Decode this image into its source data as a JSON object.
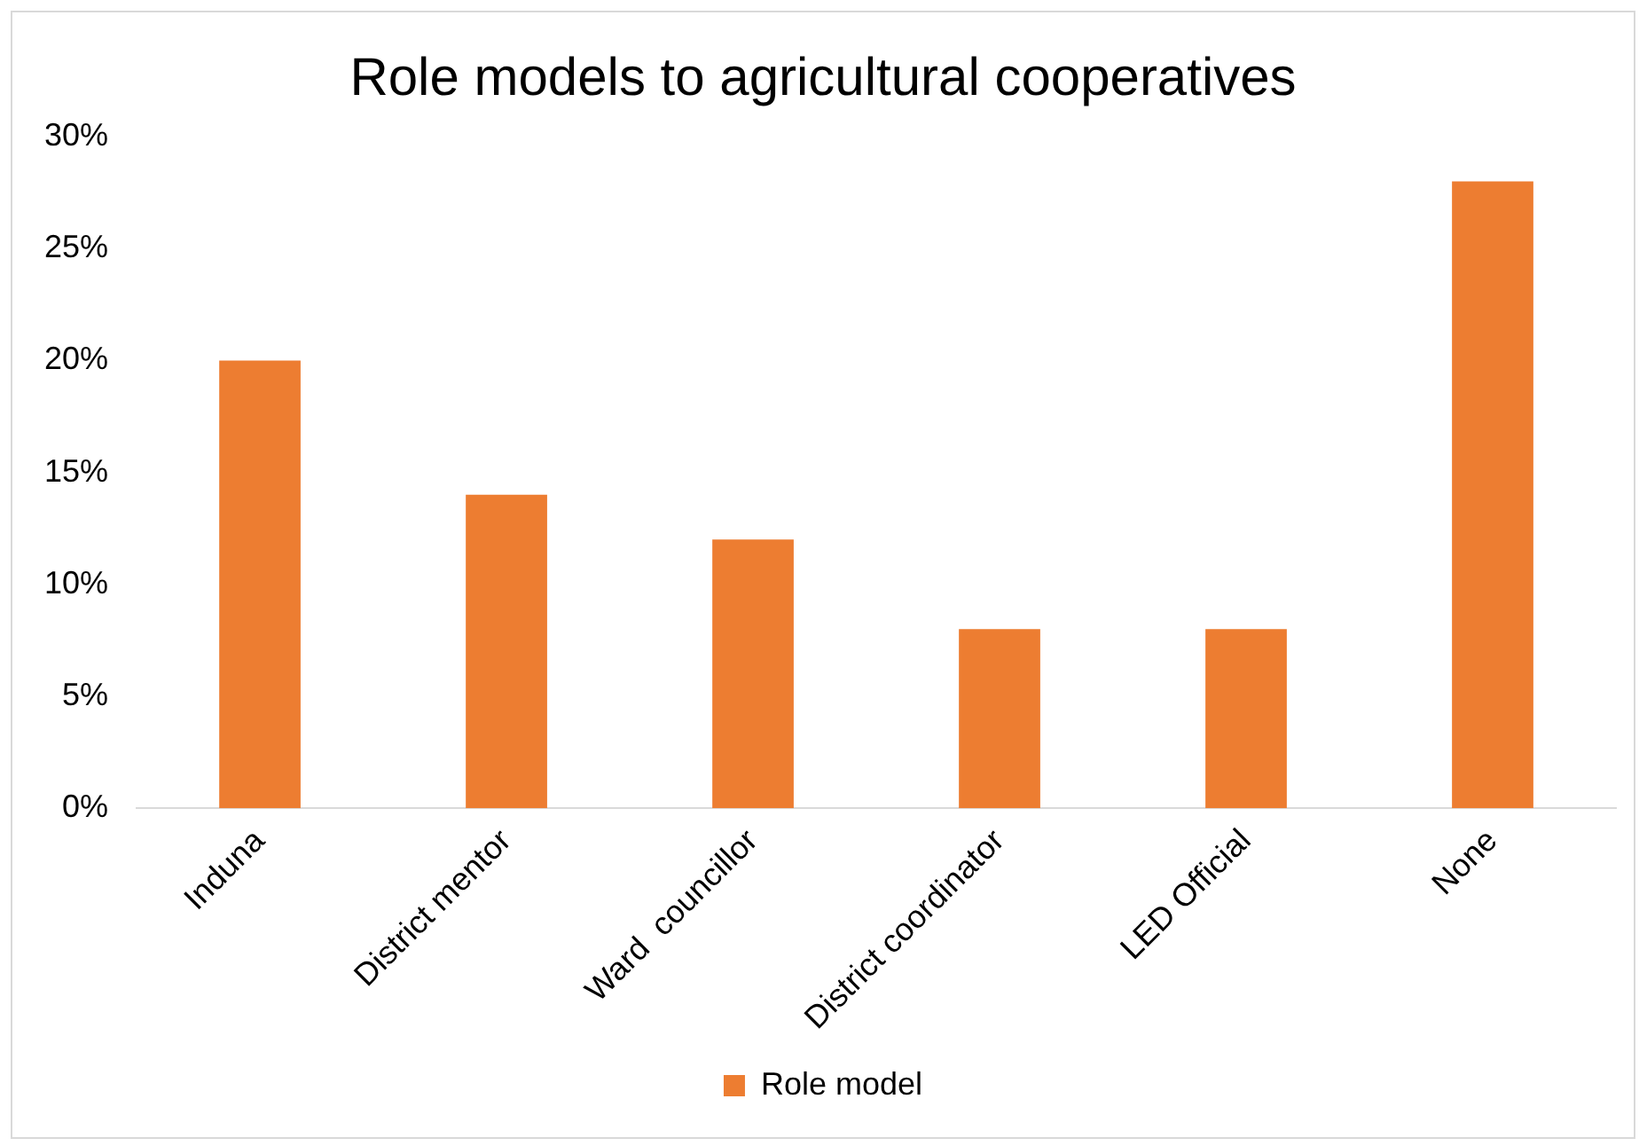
{
  "chart_data": {
    "type": "bar",
    "title": "Role models to agricultural cooperatives",
    "categories": [
      "Induna",
      "District mentor",
      "Ward  councillor",
      "District coordinator",
      "LED Official",
      "None"
    ],
    "series": [
      {
        "name": "Role model",
        "color": "#ed7d31",
        "values": [
          20,
          14,
          12,
          8,
          8,
          28
        ]
      }
    ],
    "ylim": [
      0,
      30
    ],
    "yticks": [
      {
        "value": 0,
        "label": "0%"
      },
      {
        "value": 5,
        "label": "5%"
      },
      {
        "value": 10,
        "label": "10%"
      },
      {
        "value": 15,
        "label": "15%"
      },
      {
        "value": 20,
        "label": "20%"
      },
      {
        "value": 25,
        "label": "25%"
      },
      {
        "value": 30,
        "label": "30%"
      }
    ],
    "grid": false,
    "legend": "bottom"
  }
}
